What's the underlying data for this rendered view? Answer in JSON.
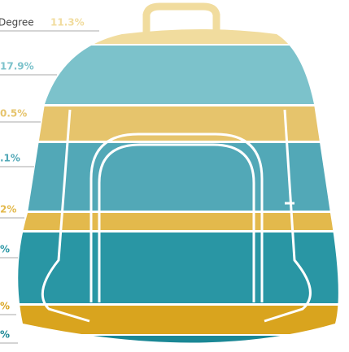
{
  "bands": [
    {
      "category": "Degree",
      "percent": "11.3%",
      "color": "#f1dc9e"
    },
    {
      "percent": "17.9%",
      "color": "#7cc2cb"
    },
    {
      "percent": "0.5%",
      "color": "#e6c46c"
    },
    {
      "percent": ".1%",
      "color": "#52a8b7"
    },
    {
      "percent": "2%",
      "color": "#e3b94c"
    },
    {
      "percent": "%",
      "color": "#2996a4"
    },
    {
      "percent": "%",
      "color": "#d9a41e"
    },
    {
      "percent": "%",
      "color": "#1a8795"
    }
  ]
}
